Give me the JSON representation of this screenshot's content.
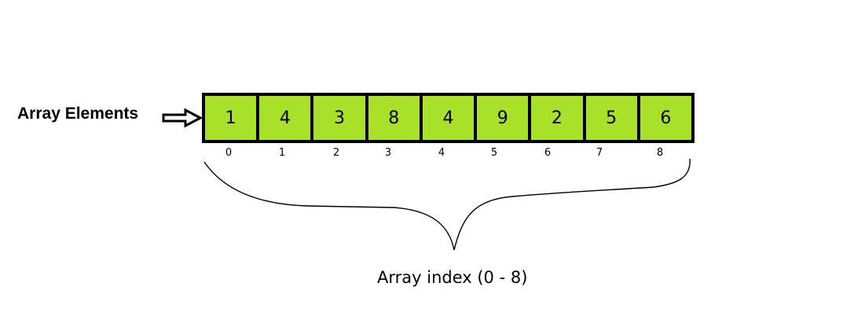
{
  "colors": {
    "cell_fill": "#a8e02a",
    "border": "#000000",
    "text": "#000000",
    "background": "#ffffff"
  },
  "labels": {
    "elements": "Array Elements",
    "index": "Array index (0 - 8)"
  },
  "icons": {
    "pointer": "right-arrow-icon",
    "grouping": "curly-brace"
  },
  "array": {
    "elements": [
      "1",
      "4",
      "3",
      "8",
      "4",
      "9",
      "2",
      "5",
      "6"
    ],
    "indices": [
      "0",
      "1",
      "2",
      "3",
      "4",
      "5",
      "6",
      "7",
      "8"
    ]
  }
}
